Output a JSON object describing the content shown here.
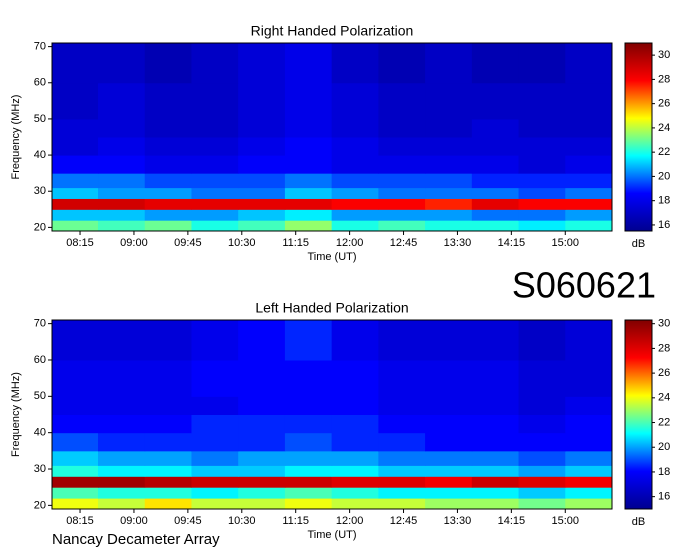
{
  "header": "S060621",
  "footer": "Nancay Decameter Array",
  "chart_data": [
    {
      "type": "heatmap",
      "title": "Right Handed Polarization",
      "xlabel": "Time (UT)",
      "ylabel": "Frequency (MHz)",
      "x": [
        7.86,
        8.5,
        9.15,
        9.8,
        10.45,
        11.1,
        11.75,
        12.4,
        13.05,
        13.7,
        14.35,
        15.0,
        15.65
      ],
      "y": [
        19,
        22,
        25,
        28,
        31,
        35,
        40,
        45,
        50,
        60,
        71
      ],
      "z": [
        [
          23,
          22.5,
          23,
          22,
          22.5,
          23.5,
          22,
          22.5,
          22,
          22,
          21.5,
          22
        ],
        [
          21,
          21,
          20.5,
          20.5,
          21,
          21.5,
          20.5,
          20.5,
          20.5,
          20,
          20,
          20.5
        ],
        [
          29,
          29,
          28.5,
          28.5,
          28.5,
          28.5,
          28,
          28,
          27.5,
          28.5,
          28,
          28
        ],
        [
          21,
          20.5,
          20.5,
          20,
          20,
          21,
          20.5,
          20,
          20,
          20,
          19.5,
          20
        ],
        [
          20,
          20,
          19.5,
          19.5,
          19.5,
          20,
          19.5,
          19.5,
          19.5,
          19,
          19,
          19
        ],
        [
          18.5,
          18.5,
          18,
          18,
          18.5,
          18.5,
          18,
          18,
          18,
          18,
          17.5,
          18
        ],
        [
          17.5,
          18,
          17.5,
          17.5,
          18,
          18.5,
          18,
          17.5,
          17.5,
          17.5,
          17.5,
          17.5
        ],
        [
          17.5,
          17.5,
          17,
          17,
          17.5,
          18,
          17.5,
          17,
          17,
          17.5,
          17,
          17
        ],
        [
          17,
          17.5,
          17,
          17,
          17.5,
          18,
          17.5,
          17,
          17,
          17,
          17,
          17
        ],
        [
          17,
          17,
          16.5,
          17,
          17.5,
          18,
          17,
          16.5,
          17,
          16.5,
          16.5,
          17
        ]
      ],
      "xlim": [
        7.86,
        15.65
      ],
      "ylim": [
        19,
        71
      ],
      "xticks": [
        {
          "value": 8.25,
          "label": "08:15"
        },
        {
          "value": 9,
          "label": "09:00"
        },
        {
          "value": 9.75,
          "label": "09:45"
        },
        {
          "value": 10.5,
          "label": "10:30"
        },
        {
          "value": 11.25,
          "label": "11:15"
        },
        {
          "value": 12,
          "label": "12:00"
        },
        {
          "value": 12.75,
          "label": "12:45"
        },
        {
          "value": 13.5,
          "label": "13:30"
        },
        {
          "value": 14.25,
          "label": "14:15"
        },
        {
          "value": 15,
          "label": "15:00"
        }
      ],
      "yticks": [
        20,
        30,
        40,
        50,
        60,
        70
      ],
      "zlim": [
        15.5,
        31
      ],
      "zticks": [
        16,
        18,
        20,
        22,
        24,
        26,
        28,
        30
      ],
      "zlabel": "dB",
      "colormap": [
        "#00008f",
        "#0000ff",
        "#00ffff",
        "#ffff00",
        "#ff0000",
        "#800000"
      ]
    },
    {
      "type": "heatmap",
      "title": "Left Handed Polarization",
      "xlabel": "Time (UT)",
      "ylabel": "Frequency (MHz)",
      "x": [
        7.86,
        8.5,
        9.15,
        9.8,
        10.45,
        11.1,
        11.75,
        12.4,
        13.05,
        13.7,
        14.35,
        15.0,
        15.65
      ],
      "y": [
        19,
        22,
        25,
        28,
        31,
        35,
        40,
        45,
        50,
        60,
        71
      ],
      "z": [
        [
          24,
          23.5,
          24.5,
          23.5,
          23.5,
          24,
          23.5,
          23.5,
          23,
          23,
          22.5,
          23
        ],
        [
          22,
          21.5,
          21.5,
          21,
          21.5,
          22,
          21.5,
          21,
          21,
          21,
          20.5,
          21
        ],
        [
          29.5,
          29.5,
          29,
          28.5,
          28.5,
          28.5,
          28,
          28,
          27.5,
          28.5,
          28,
          27.5
        ],
        [
          21.5,
          21,
          21,
          20.5,
          20.5,
          21,
          21,
          20.5,
          20.5,
          20.5,
          20,
          20.5
        ],
        [
          20.5,
          20,
          20,
          19.5,
          20,
          20,
          20,
          19.5,
          19.5,
          19.5,
          19,
          19.5
        ],
        [
          19,
          18.5,
          18.5,
          18.5,
          18.5,
          19,
          18.5,
          18.5,
          18,
          18,
          18,
          18
        ],
        [
          18,
          18,
          18,
          18.5,
          18.5,
          18.5,
          18.5,
          18,
          18,
          18,
          17.5,
          18
        ],
        [
          17.5,
          17.5,
          17.5,
          17.5,
          18,
          18,
          18,
          17.5,
          17.5,
          17.5,
          17,
          17.5
        ],
        [
          17.5,
          17.5,
          17.5,
          18,
          18,
          18,
          18,
          17.5,
          17.5,
          17.5,
          17,
          17
        ],
        [
          17,
          17,
          17,
          17.5,
          18,
          18.5,
          17.5,
          17,
          17,
          17,
          16.5,
          17
        ]
      ],
      "xlim": [
        7.86,
        15.65
      ],
      "ylim": [
        19,
        71
      ],
      "xticks": [
        {
          "value": 8.25,
          "label": "08:15"
        },
        {
          "value": 9,
          "label": "09:00"
        },
        {
          "value": 9.75,
          "label": "09:45"
        },
        {
          "value": 10.5,
          "label": "10:30"
        },
        {
          "value": 11.25,
          "label": "11:15"
        },
        {
          "value": 12,
          "label": "12:00"
        },
        {
          "value": 12.75,
          "label": "12:45"
        },
        {
          "value": 13.5,
          "label": "13:30"
        },
        {
          "value": 14.25,
          "label": "14:15"
        },
        {
          "value": 15,
          "label": "15:00"
        }
      ],
      "yticks": [
        20,
        30,
        40,
        50,
        60,
        70
      ],
      "zlim": [
        15,
        30.3
      ],
      "zticks": [
        16,
        18,
        20,
        22,
        24,
        26,
        28,
        30
      ],
      "zlabel": "dB",
      "colormap": [
        "#00008f",
        "#0000ff",
        "#00ffff",
        "#ffff00",
        "#ff0000",
        "#800000"
      ]
    }
  ]
}
